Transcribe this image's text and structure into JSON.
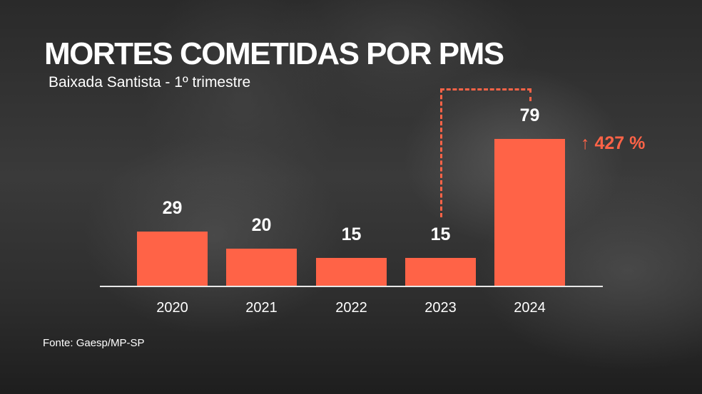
{
  "header": {
    "title": "MORTES COMETIDAS POR PMS",
    "subtitle": "Baixada Santista - 1º trimestre"
  },
  "footer": {
    "source": "Fonte: Gaesp/MP-SP"
  },
  "colors": {
    "accent": "#FF6347",
    "text": "#FFFFFF",
    "axis": "#E8E8E8"
  },
  "annotation": {
    "arrow": "↑",
    "change": "427 %",
    "from": "2023",
    "to": "2024"
  },
  "chart_data": {
    "type": "bar",
    "title": "MORTES COMETIDAS POR PMS",
    "subtitle": "Baixada Santista - 1º trimestre",
    "categories": [
      "2020",
      "2021",
      "2022",
      "2023",
      "2024"
    ],
    "values": [
      29,
      20,
      15,
      15,
      79
    ],
    "labels": [
      "29",
      "20",
      "15",
      "15",
      "79"
    ],
    "xlabel": "",
    "ylabel": "",
    "ylim": [
      0,
      79
    ],
    "grid": false,
    "legend": null,
    "annotations": [
      {
        "text": "↑ 427 %",
        "from": "2023",
        "to": "2024"
      }
    ],
    "source": "Fonte: Gaesp/MP-SP"
  }
}
